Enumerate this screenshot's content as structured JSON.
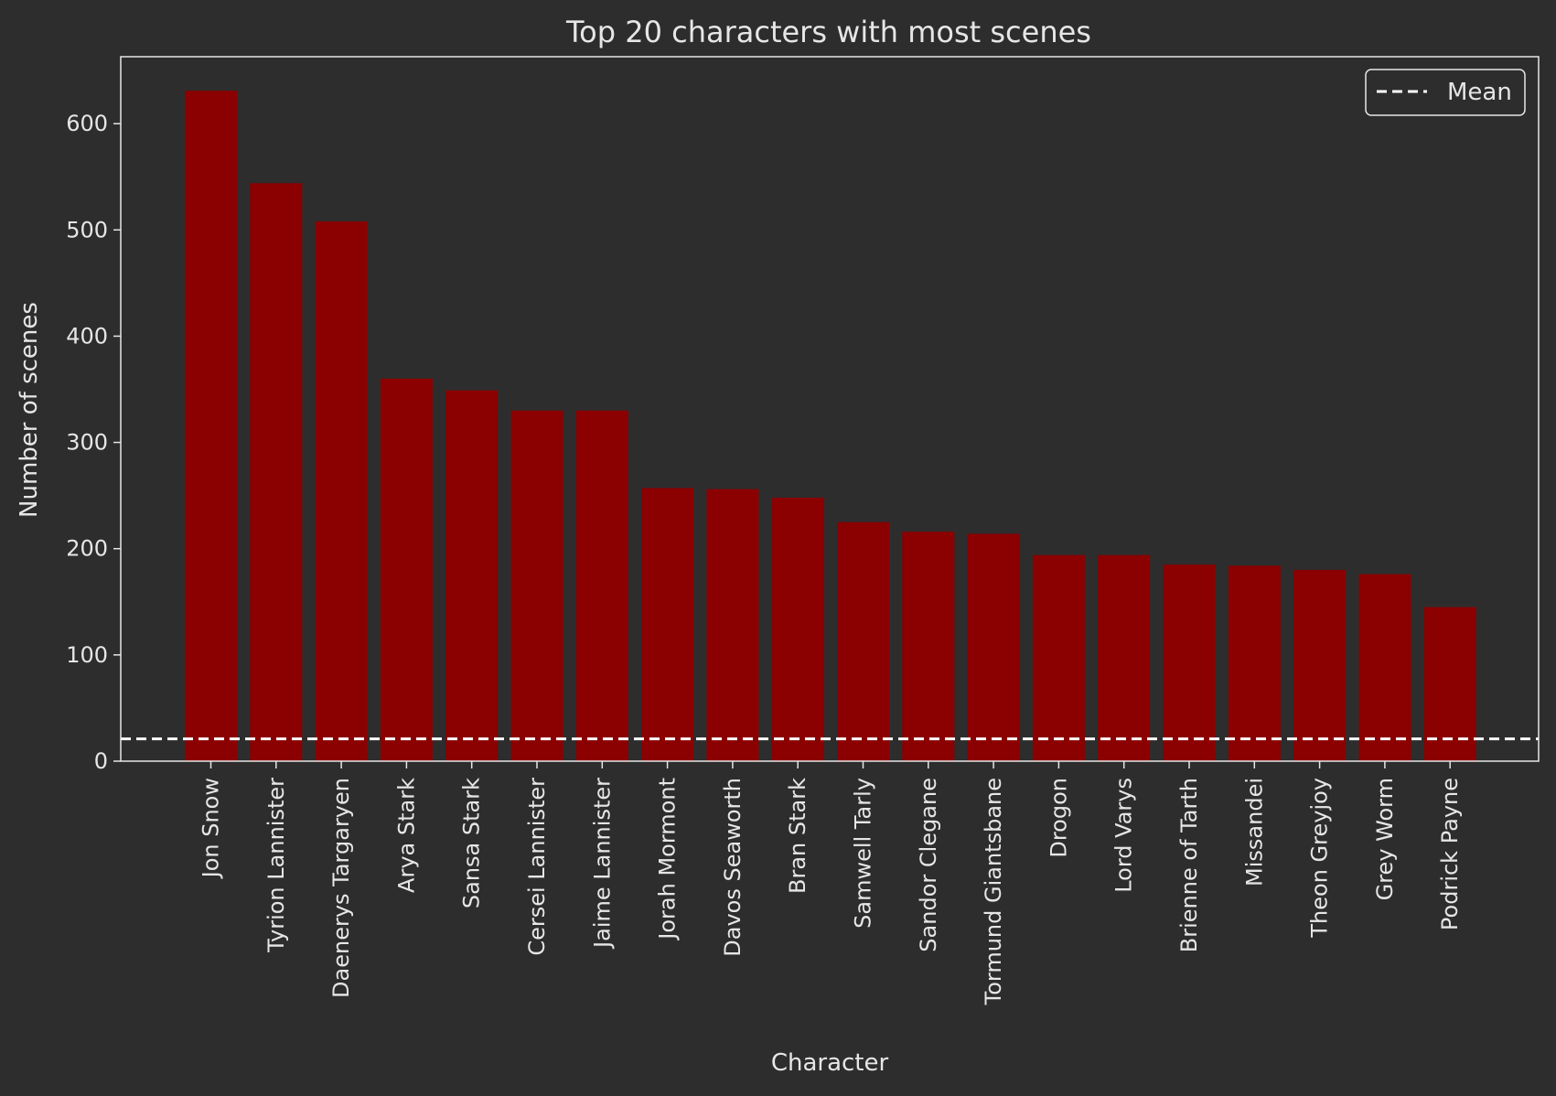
{
  "chart_data": {
    "type": "bar",
    "title": "Top 20 characters with most scenes",
    "xlabel": "Character",
    "ylabel": "Number of scenes",
    "ylim": [
      0,
      663
    ],
    "yticks": [
      0,
      100,
      200,
      300,
      400,
      500,
      600
    ],
    "categories": [
      "Jon Snow",
      "Tyrion Lannister",
      "Daenerys Targaryen",
      "Arya Stark",
      "Sansa Stark",
      "Cersei Lannister",
      "Jaime Lannister",
      "Jorah Mormont",
      "Davos Seaworth",
      "Bran Stark",
      "Samwell Tarly",
      "Sandor Clegane",
      "Tormund Giantsbane",
      "Drogon",
      "Lord Varys",
      "Brienne of Tarth",
      "Missandei",
      "Theon Greyjoy",
      "Grey Worm",
      "Podrick Payne"
    ],
    "values": [
      631,
      544,
      508,
      360,
      349,
      330,
      330,
      257,
      256,
      248,
      225,
      216,
      214,
      194,
      194,
      185,
      184,
      180,
      176,
      145
    ],
    "mean_line": {
      "label": "Mean",
      "value": 21
    },
    "legend": {
      "location": "top-right",
      "entries": [
        "Mean"
      ]
    },
    "grid": false,
    "colors": {
      "bar": "#8b0000",
      "background": "#2e2d2e",
      "text": "#e6e6e6",
      "mean_line": "#ffffff"
    }
  }
}
